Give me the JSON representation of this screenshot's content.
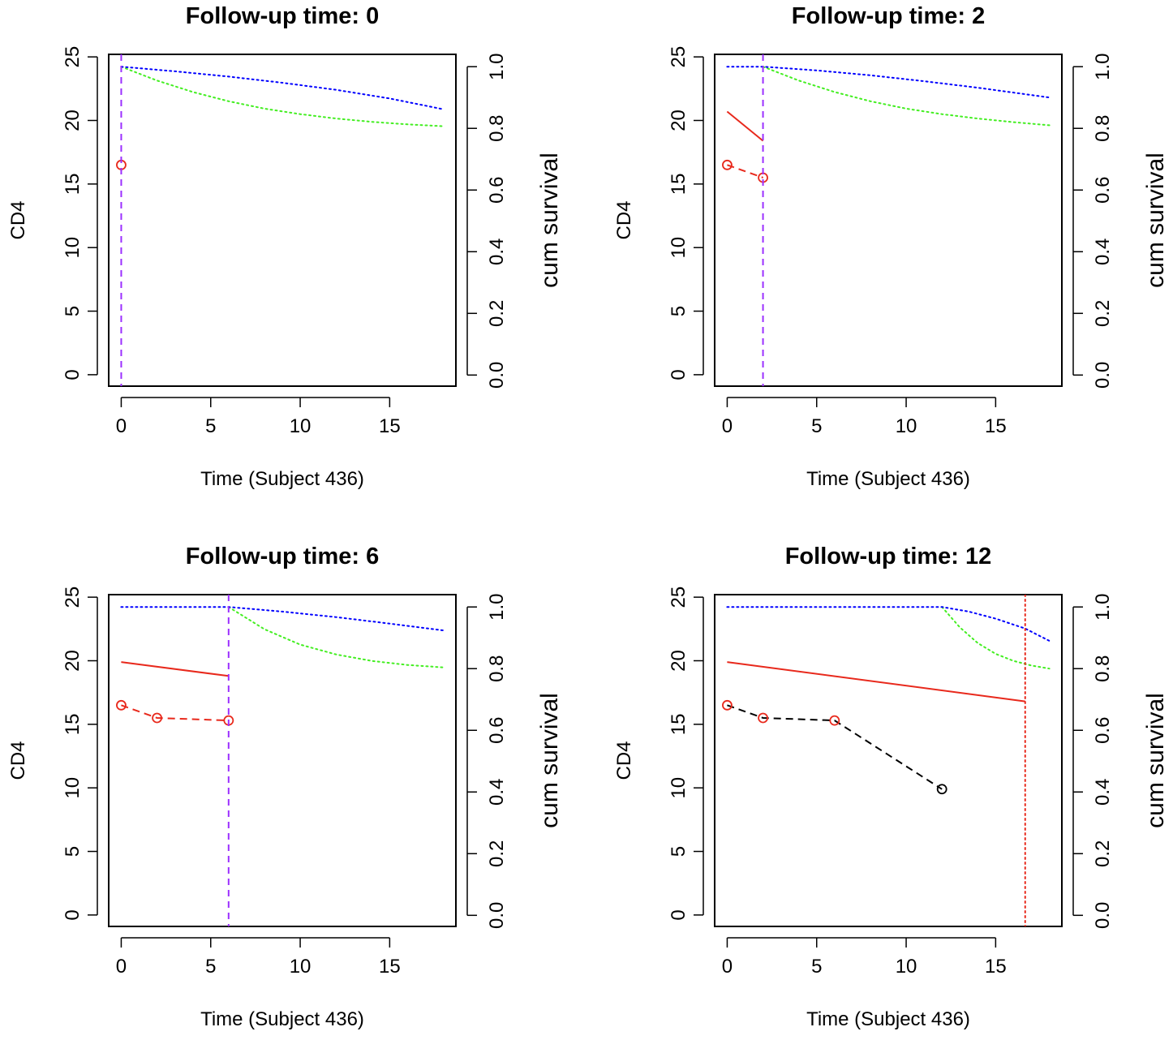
{
  "figure": {
    "rows": 2,
    "cols": 2
  },
  "colors": {
    "observed": "#e8291c",
    "fitted": "#e8291c",
    "future_obs": "#000000",
    "survival_mean": "#0000ff",
    "survival_bound": "#44ee22",
    "followup_line": "#9b30ff",
    "event_line": "#e8291c"
  },
  "chart_data": [
    {
      "type": "line",
      "title": "Follow-up time: 0",
      "xlabel": "Time (Subject 436)",
      "ylabel": "CD4",
      "ylabel_right": "cum survival",
      "xlim": [
        -0.7,
        18.7
      ],
      "ylim": [
        -0.9,
        25.2
      ],
      "ylim_right": [
        -0.036,
        1.04
      ],
      "x_ticks": [
        "0",
        "5",
        "10",
        "15"
      ],
      "y_ticks": [
        "0",
        "5",
        "10",
        "15",
        "20",
        "25"
      ],
      "y_ticks_right": [
        "0.0",
        "0.2",
        "0.4",
        "0.6",
        "0.8",
        "1.0"
      ],
      "followup_time": 0,
      "followup_style": "dashed-purple",
      "observed": {
        "x": [
          0
        ],
        "y": [
          16.5
        ]
      },
      "future_observed": {
        "x": [],
        "y": []
      },
      "fitted": {
        "x": [],
        "y": []
      },
      "survival_mean": {
        "x": [
          0,
          3,
          6,
          9,
          12,
          15,
          18
        ],
        "y": [
          1.0,
          0.985,
          0.968,
          0.948,
          0.925,
          0.897,
          0.862
        ]
      },
      "survival_lower": {
        "x": [
          0,
          2,
          4,
          6,
          8,
          10,
          12,
          14,
          16,
          18
        ],
        "y": [
          1.0,
          0.955,
          0.918,
          0.888,
          0.864,
          0.846,
          0.832,
          0.821,
          0.813,
          0.807
        ]
      }
    },
    {
      "type": "line",
      "title": "Follow-up time: 2",
      "xlabel": "Time (Subject 436)",
      "ylabel": "CD4",
      "ylabel_right": "cum survival",
      "xlim": [
        -0.7,
        18.7
      ],
      "ylim": [
        -0.9,
        25.2
      ],
      "ylim_right": [
        -0.036,
        1.04
      ],
      "x_ticks": [
        "0",
        "5",
        "10",
        "15"
      ],
      "y_ticks": [
        "0",
        "5",
        "10",
        "15",
        "20",
        "25"
      ],
      "y_ticks_right": [
        "0.0",
        "0.2",
        "0.4",
        "0.6",
        "0.8",
        "1.0"
      ],
      "followup_time": 2,
      "followup_style": "dashed-purple",
      "observed": {
        "x": [
          0,
          2
        ],
        "y": [
          16.5,
          15.5
        ]
      },
      "future_observed": {
        "x": [],
        "y": []
      },
      "fitted": {
        "x": [
          0,
          2
        ],
        "y": [
          20.7,
          18.4
        ]
      },
      "survival_mean": {
        "x": [
          0,
          2,
          5,
          8,
          11,
          14,
          18
        ],
        "y": [
          1.0,
          1.0,
          0.988,
          0.972,
          0.953,
          0.932,
          0.9
        ]
      },
      "survival_lower": {
        "x": [
          2,
          4,
          6,
          8,
          10,
          12,
          14,
          16,
          18
        ],
        "y": [
          1.0,
          0.955,
          0.918,
          0.888,
          0.864,
          0.846,
          0.832,
          0.82,
          0.81
        ]
      }
    },
    {
      "type": "line",
      "title": "Follow-up time: 6",
      "xlabel": "Time (Subject 436)",
      "ylabel": "CD4",
      "ylabel_right": "cum survival",
      "xlim": [
        -0.7,
        18.7
      ],
      "ylim": [
        -0.9,
        25.2
      ],
      "ylim_right": [
        -0.036,
        1.04
      ],
      "x_ticks": [
        "0",
        "5",
        "10",
        "15"
      ],
      "y_ticks": [
        "0",
        "5",
        "10",
        "15",
        "20",
        "25"
      ],
      "y_ticks_right": [
        "0.0",
        "0.2",
        "0.4",
        "0.6",
        "0.8",
        "1.0"
      ],
      "followup_time": 6,
      "followup_style": "dashed-purple",
      "observed": {
        "x": [
          0,
          2,
          6
        ],
        "y": [
          16.5,
          15.5,
          15.3
        ]
      },
      "future_observed": {
        "x": [],
        "y": []
      },
      "fitted": {
        "x": [
          0,
          6
        ],
        "y": [
          19.9,
          18.8
        ]
      },
      "survival_mean": {
        "x": [
          0,
          6,
          9,
          12,
          15,
          18
        ],
        "y": [
          1.0,
          1.0,
          0.985,
          0.967,
          0.946,
          0.924
        ]
      },
      "survival_lower": {
        "x": [
          6,
          8,
          10,
          12,
          14,
          16,
          18
        ],
        "y": [
          1.0,
          0.928,
          0.878,
          0.846,
          0.825,
          0.812,
          0.804
        ]
      }
    },
    {
      "type": "line",
      "title": "Follow-up time: 12",
      "xlabel": "Time (Subject 436)",
      "ylabel": "CD4",
      "ylabel_right": "cum survival",
      "xlim": [
        -0.7,
        18.7
      ],
      "ylim": [
        -0.9,
        25.2
      ],
      "ylim_right": [
        -0.036,
        1.04
      ],
      "x_ticks": [
        "0",
        "5",
        "10",
        "15"
      ],
      "y_ticks": [
        "0",
        "5",
        "10",
        "15",
        "20",
        "25"
      ],
      "y_ticks_right": [
        "0.0",
        "0.2",
        "0.4",
        "0.6",
        "0.8",
        "1.0"
      ],
      "followup_time": 16.65,
      "followup_style": "dotted-red",
      "observed": {
        "x": [
          0,
          2,
          6
        ],
        "y": [
          16.5,
          15.5,
          15.3
        ]
      },
      "future_observed": {
        "x": [
          0,
          2,
          6,
          12
        ],
        "y": [
          16.5,
          15.5,
          15.3,
          9.9
        ]
      },
      "fitted": {
        "x": [
          0,
          16.65
        ],
        "y": [
          19.9,
          16.8
        ]
      },
      "survival_mean": {
        "x": [
          0,
          12,
          13.5,
          15,
          16.65,
          18
        ],
        "y": [
          1.0,
          1.0,
          0.985,
          0.962,
          0.93,
          0.89
        ]
      },
      "survival_lower": {
        "x": [
          12,
          13,
          14,
          15,
          16,
          17,
          18
        ],
        "y": [
          1.0,
          0.934,
          0.883,
          0.848,
          0.825,
          0.81,
          0.8
        ]
      }
    }
  ]
}
